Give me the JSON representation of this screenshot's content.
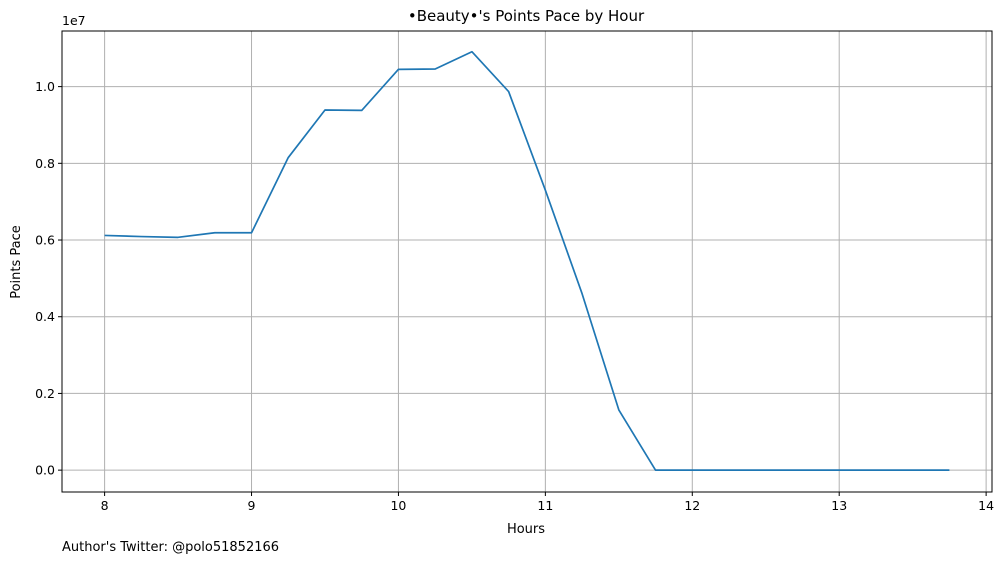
{
  "chart_data": {
    "type": "line",
    "title": "•Beauty•'s Points Pace by Hour",
    "xlabel": "Hours",
    "ylabel": "Points Pace",
    "y_offset_label": "1e7",
    "footnote": "Author's Twitter: @polo51852166",
    "xlim": [
      7.71,
      14.04
    ],
    "ylim": [
      -570000,
      11450000
    ],
    "x_ticks": [
      8,
      9,
      10,
      11,
      12,
      13,
      14
    ],
    "y_ticks": [
      0,
      2000000,
      4000000,
      6000000,
      8000000,
      10000000
    ],
    "x_tick_labels": [
      "8",
      "9",
      "10",
      "11",
      "12",
      "13",
      "14"
    ],
    "y_tick_labels": [
      "0.0",
      "0.2",
      "0.4",
      "0.6",
      "0.8",
      "1.0"
    ],
    "grid": true,
    "line_color": "#1f77b4",
    "series": [
      {
        "x": [
          8.0,
          8.25,
          8.5,
          8.75,
          9.0,
          9.25,
          9.5,
          9.75,
          10.0,
          10.25,
          10.5,
          10.75,
          11.0,
          11.25,
          11.5,
          11.75,
          12.0,
          12.25,
          12.5,
          12.75,
          13.0,
          13.25,
          13.5,
          13.75
        ],
        "y": [
          6120000,
          6090000,
          6070000,
          6190000,
          6190000,
          8150000,
          9390000,
          9380000,
          10450000,
          10460000,
          10910000,
          9870000,
          7300000,
          4600000,
          1570000,
          0,
          0,
          0,
          0,
          0,
          0,
          0,
          0,
          0
        ]
      }
    ]
  }
}
